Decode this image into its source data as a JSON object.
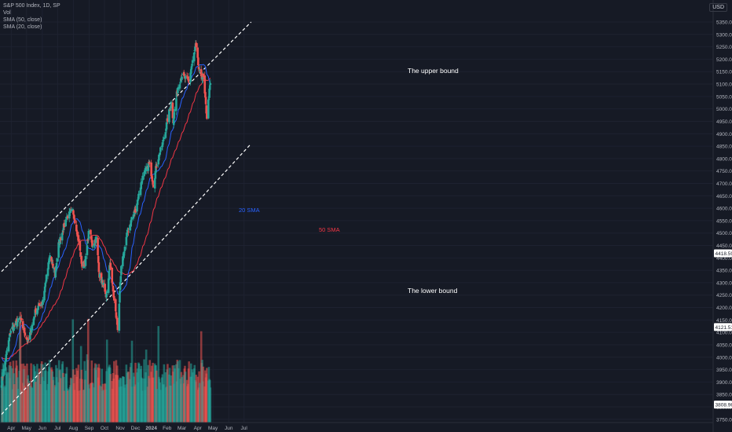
{
  "legend": {
    "symbol": "S&P 500 Index, 1D, SP",
    "vol": "Vol",
    "sma50": "SMA (50, close)",
    "sma20": "SMA (20, close)"
  },
  "currency": "USD",
  "colors": {
    "background": "#161a25",
    "up": "#26a69a",
    "down": "#ef5350",
    "sma20": "#2962ff",
    "sma50": "#f23645",
    "bound": "#ffffff"
  },
  "chart_data": {
    "type": "candlestick",
    "y_axis_ticks": [
      3750,
      3800,
      3850,
      3900,
      3950,
      4000,
      4050,
      4100,
      4150,
      4200,
      4250,
      4300,
      4350,
      4400,
      4450,
      4500,
      4550,
      4600,
      4650,
      4700,
      4750,
      4800,
      4850,
      4900,
      4950,
      5000,
      5050,
      5100,
      5150,
      5200,
      5250,
      5300,
      5350
    ],
    "ylim": [
      3730,
      5380
    ],
    "x_axis_labels": [
      "Apr",
      "May",
      "Jun",
      "Jul",
      "Aug",
      "Sep",
      "Oct",
      "Nov",
      "Dec",
      "2024",
      "Feb",
      "Mar",
      "Apr",
      "May",
      "Jun",
      "Jul"
    ],
    "price_labels": [
      "4418.59",
      "4121.51",
      "3808.96"
    ],
    "annotations": {
      "upper": "The upper bound",
      "lower": "The lower bound",
      "sma20": "20 SMA",
      "sma50": "50 SMA"
    },
    "anchors": [
      [
        "2023-03-13",
        3900
      ],
      [
        "2023-03-31",
        4110
      ],
      [
        "2023-04-18",
        4155
      ],
      [
        "2023-05-04",
        4060
      ],
      [
        "2023-05-19",
        4190
      ],
      [
        "2023-06-01",
        4221
      ],
      [
        "2023-06-16",
        4410
      ],
      [
        "2023-06-26",
        4330
      ],
      [
        "2023-07-03",
        4455
      ],
      [
        "2023-07-19",
        4565
      ],
      [
        "2023-07-31",
        4590
      ],
      [
        "2023-08-07",
        4520
      ],
      [
        "2023-08-18",
        4370
      ],
      [
        "2023-08-24",
        4380
      ],
      [
        "2023-09-01",
        4515
      ],
      [
        "2023-09-07",
        4450
      ],
      [
        "2023-09-15",
        4480
      ],
      [
        "2023-09-21",
        4330
      ],
      [
        "2023-09-29",
        4290
      ],
      [
        "2023-10-04",
        4230
      ],
      [
        "2023-10-12",
        4380
      ],
      [
        "2023-10-20",
        4225
      ],
      [
        "2023-10-27",
        4117
      ],
      [
        "2023-11-03",
        4358
      ],
      [
        "2023-11-14",
        4495
      ],
      [
        "2023-11-24",
        4560
      ],
      [
        "2023-12-01",
        4595
      ],
      [
        "2023-12-14",
        4719
      ],
      [
        "2023-12-28",
        4783
      ],
      [
        "2024-01-05",
        4697
      ],
      [
        "2024-01-12",
        4783
      ],
      [
        "2024-01-24",
        4868
      ],
      [
        "2024-02-02",
        4958
      ],
      [
        "2024-02-09",
        5026
      ],
      [
        "2024-02-13",
        4953
      ],
      [
        "2024-02-22",
        5087
      ],
      [
        "2024-03-01",
        5137
      ],
      [
        "2024-03-08",
        5123
      ],
      [
        "2024-03-15",
        5117
      ],
      [
        "2024-03-28",
        5254
      ],
      [
        "2024-04-04",
        5147
      ],
      [
        "2024-04-12",
        5123
      ],
      [
        "2024-04-19",
        4967
      ],
      [
        "2024-04-24",
        5071
      ],
      [
        "2024-04-26",
        5100
      ]
    ],
    "sma20_label": "SMA (20, close)",
    "sma50_label": "SMA (50, close)",
    "upper_bound": [
      [
        "2023-03-13",
        4345
      ],
      [
        "2024-07-15",
        5350
      ]
    ],
    "lower_bound": [
      [
        "2023-03-13",
        3770
      ],
      [
        "2024-07-15",
        4860
      ]
    ]
  }
}
